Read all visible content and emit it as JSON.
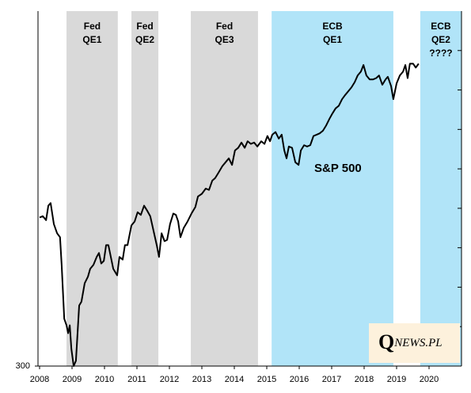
{
  "chart_data": {
    "type": "line",
    "xlim": [
      2008,
      2021
    ],
    "xticks": [
      2008,
      2009,
      2010,
      2011,
      2012,
      2013,
      2014,
      2015,
      2016,
      2017,
      2018,
      2019,
      2020
    ],
    "ylim": [
      300,
      3000
    ],
    "yticks": [
      300
    ],
    "y_minor_ticks": [
      600,
      900,
      1200,
      1500,
      1800,
      2100,
      2400,
      2700
    ],
    "regions": [
      {
        "label_lines": [
          "Fed",
          "QE1"
        ],
        "start": 2008.83,
        "end": 2010.41,
        "color": "#d9d9d9"
      },
      {
        "label_lines": [
          "Fed",
          "QE2"
        ],
        "start": 2010.83,
        "end": 2011.66,
        "color": "#d9d9d9"
      },
      {
        "label_lines": [
          "Fed",
          "QE3"
        ],
        "start": 2012.66,
        "end": 2014.73,
        "color": "#d9d9d9"
      },
      {
        "label_lines": [
          "ECB",
          "QE1"
        ],
        "start": 2015.15,
        "end": 2018.9,
        "color": "#b1e4f8"
      },
      {
        "label_lines": [
          "ECB",
          "QE2",
          "????"
        ],
        "start": 2019.73,
        "end": 2021,
        "color": "#b1e4f8"
      }
    ],
    "x": [
      2008.0,
      2008.1,
      2008.2,
      2008.27,
      2008.34,
      2008.44,
      2008.54,
      2008.63,
      2008.68,
      2008.76,
      2008.83,
      2008.88,
      2008.93,
      2008.98,
      2009.05,
      2009.12,
      2009.17,
      2009.22,
      2009.29,
      2009.39,
      2009.49,
      2009.56,
      2009.66,
      2009.76,
      2009.83,
      2009.9,
      2009.98,
      2010.05,
      2010.12,
      2010.27,
      2010.39,
      2010.46,
      2010.56,
      2010.63,
      2010.71,
      2010.83,
      2010.93,
      2011.02,
      2011.12,
      2011.22,
      2011.32,
      2011.41,
      2011.51,
      2011.61,
      2011.68,
      2011.76,
      2011.85,
      2011.93,
      2012.02,
      2012.12,
      2012.2,
      2012.27,
      2012.34,
      2012.44,
      2012.56,
      2012.68,
      2012.8,
      2012.88,
      2013.0,
      2013.12,
      2013.22,
      2013.32,
      2013.41,
      2013.51,
      2013.63,
      2013.73,
      2013.83,
      2013.93,
      2014.02,
      2014.12,
      2014.22,
      2014.32,
      2014.41,
      2014.51,
      2014.61,
      2014.71,
      2014.83,
      2014.93,
      2015.02,
      2015.1,
      2015.17,
      2015.27,
      2015.37,
      2015.46,
      2015.54,
      2015.61,
      2015.68,
      2015.78,
      2015.88,
      2015.98,
      2016.05,
      2016.15,
      2016.24,
      2016.34,
      2016.44,
      2016.54,
      2016.63,
      2016.73,
      2016.83,
      2016.93,
      2017.02,
      2017.12,
      2017.22,
      2017.32,
      2017.41,
      2017.51,
      2017.61,
      2017.71,
      2017.8,
      2017.9,
      2017.98,
      2018.07,
      2018.17,
      2018.27,
      2018.37,
      2018.46,
      2018.56,
      2018.66,
      2018.73,
      2018.83,
      2018.9,
      2019.0,
      2019.1,
      2019.2,
      2019.27,
      2019.34,
      2019.41,
      2019.51,
      2019.59,
      2019.68
    ],
    "series": [
      {
        "name": "S&P 500",
        "color": "#000000",
        "values": [
          1430,
          1440,
          1410,
          1520,
          1540,
          1380,
          1310,
          1280,
          1070,
          660,
          610,
          550,
          610,
          430,
          300,
          340,
          550,
          760,
          790,
          930,
          980,
          1040,
          1070,
          1130,
          1160,
          1080,
          1100,
          1220,
          1220,
          1040,
          990,
          1130,
          1110,
          1220,
          1220,
          1370,
          1400,
          1470,
          1450,
          1520,
          1480,
          1440,
          1330,
          1220,
          1130,
          1310,
          1250,
          1260,
          1380,
          1460,
          1450,
          1400,
          1280,
          1350,
          1400,
          1460,
          1510,
          1590,
          1610,
          1650,
          1640,
          1710,
          1730,
          1770,
          1820,
          1850,
          1880,
          1830,
          1940,
          1960,
          2000,
          1960,
          2010,
          1990,
          2000,
          1970,
          2010,
          1990,
          2050,
          2010,
          2060,
          2080,
          2030,
          2060,
          1940,
          1880,
          1970,
          1960,
          1850,
          1830,
          1940,
          1980,
          1970,
          1980,
          2050,
          2060,
          2070,
          2090,
          2130,
          2180,
          2220,
          2260,
          2280,
          2330,
          2360,
          2390,
          2420,
          2460,
          2510,
          2540,
          2590,
          2510,
          2480,
          2480,
          2490,
          2510,
          2440,
          2480,
          2500,
          2430,
          2330,
          2450,
          2510,
          2540,
          2590,
          2490,
          2600,
          2600,
          2570,
          2600
        ]
      }
    ],
    "logo": {
      "initial": "Q",
      "rest": "NEWS.PL",
      "color": "#fdf1dc"
    }
  }
}
